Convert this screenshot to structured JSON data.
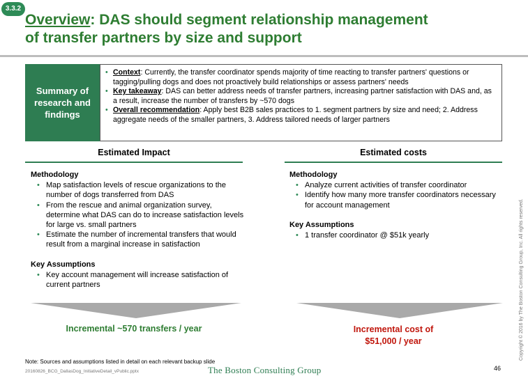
{
  "badge": "3.3.2",
  "title": {
    "lead": "Overview",
    "rest_line1": ": DAS should segment relationship management",
    "line2": "of transfer partners by size and support"
  },
  "summary": {
    "box_label": "Summary of research and findings",
    "bullets": [
      {
        "label": "Context",
        "text": ": Currently, the transfer coordinator spends majority of time reacting to transfer partners' questions or tagging/pulling dogs and does not proactively build relationships or assess partners' needs"
      },
      {
        "label": "Key takeaway",
        "text": ": DAS can better address needs of transfer partners, increasing partner satisfaction with DAS and, as a result, increase the number of transfers by ~570 dogs"
      },
      {
        "label": "Overall recommendation",
        "text": ": Apply best B2B sales practices to 1. segment partners by size and need; 2. Address aggregate needs of the smaller partners, 3. Address tailored needs of larger partners"
      }
    ]
  },
  "impact": {
    "heading": "Estimated Impact",
    "methodology_label": "Methodology",
    "methodology": [
      "Map satisfaction levels of rescue organizations to the number of dogs transferred from DAS",
      "From the rescue and animal organization survey, determine what DAS can do to increase satisfaction levels for large vs. small partners",
      "Estimate the number of incremental transfers that would result from a marginal increase in satisfaction"
    ],
    "assumptions_label": "Key Assumptions",
    "assumptions": [
      "Key account management will increase satisfaction of current partners"
    ],
    "result": "Incremental ~570 transfers / year"
  },
  "costs": {
    "heading": "Estimated costs",
    "methodology_label": "Methodology",
    "methodology": [
      "Analyze current activities of transfer coordinator",
      "Identify how many more transfer coordinators necessary for account management"
    ],
    "assumptions_label": "Key Assumptions",
    "assumptions": [
      "1 transfer coordinator  @ $51k yearly"
    ],
    "result_line1": "Incremental cost of",
    "result_line2": "$51,000 / year"
  },
  "footer": {
    "note": "Note: Sources and assumptions listed in detail on each relevant backup slide",
    "filename": "20160826_BCG_DallasDog_InitiativeDetail_vPublic.pptx",
    "logo": "The Boston Consulting Group",
    "page": "46",
    "copyright": "Copyright © 2016 by The Boston Consulting Group, Inc. All rights reserved."
  },
  "colors": {
    "green": "#2e7d52",
    "red": "#c0160c",
    "arrow": "#a9a9a9"
  }
}
